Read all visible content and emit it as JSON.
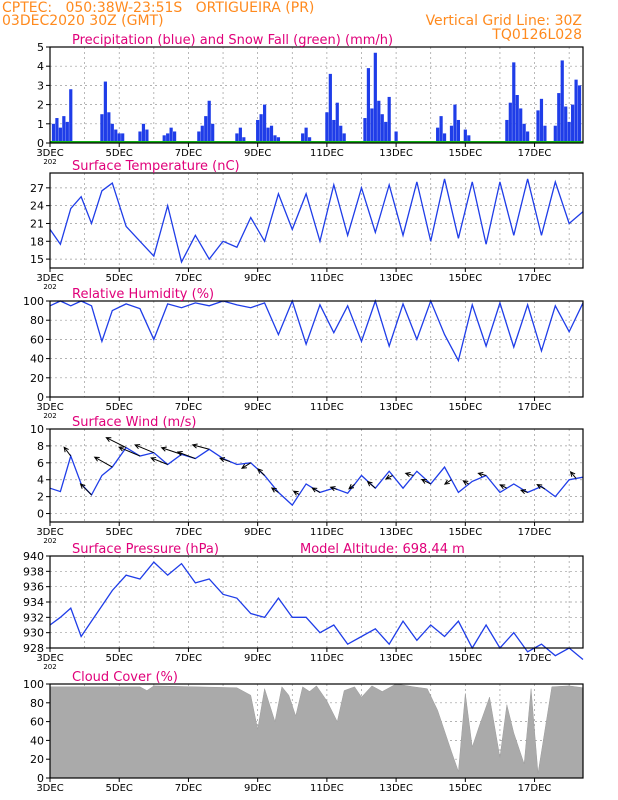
{
  "header": {
    "line1": "CPTEC:   050:38W-23:51S   ORTIGUEIRA (PR)",
    "line2": "03DEC2020 30Z (GMT)",
    "right1": "Vertical Grid Line: 30Z",
    "right2": "TQ0126L028"
  },
  "colors": {
    "header": "#ff8a1e",
    "title": "#e0007a",
    "precip": "#1f3de8",
    "snow": "#10b010",
    "line": "#1f3de8",
    "cloud": "#aaaaaa",
    "arrow": "#000000"
  },
  "x_axis": {
    "date_labels": [
      "3DEC",
      "5DEC",
      "7DEC",
      "9DEC",
      "11DEC",
      "13DEC",
      "15DEC",
      "17DEC"
    ],
    "first_label_suffix": "202",
    "start_day": 3,
    "end_day": 18.4
  },
  "chart_data": [
    {
      "id": "precip",
      "type": "bar",
      "title": "Precipitation (blue) and Snow Fall (green) (mm/h)",
      "ylim": [
        0,
        5
      ],
      "yticks": [
        "0",
        "1",
        "2",
        "3",
        "4",
        "5"
      ],
      "grid": true,
      "series": [
        {
          "name": "Precipitation",
          "x": [
            3.1,
            3.2,
            3.3,
            3.4,
            3.5,
            3.6,
            4.5,
            4.6,
            4.7,
            4.8,
            4.9,
            5.0,
            5.1,
            5.6,
            5.7,
            5.8,
            6.3,
            6.4,
            6.5,
            6.6,
            7.3,
            7.4,
            7.5,
            7.6,
            7.7,
            8.4,
            8.5,
            8.6,
            9.0,
            9.1,
            9.2,
            9.3,
            9.4,
            9.5,
            9.6,
            10.3,
            10.4,
            10.5,
            11.0,
            11.1,
            11.2,
            11.3,
            11.4,
            11.5,
            12.1,
            12.2,
            12.3,
            12.4,
            12.5,
            12.6,
            12.7,
            12.8,
            13.0,
            14.2,
            14.3,
            14.4,
            14.6,
            14.7,
            14.8,
            15.0,
            15.1,
            16.2,
            16.3,
            16.4,
            16.5,
            16.6,
            16.7,
            16.8,
            17.1,
            17.2,
            17.3,
            17.6,
            17.7,
            17.8,
            17.9,
            18.0,
            18.1,
            18.2,
            18.3
          ],
          "values": [
            1.0,
            1.3,
            0.8,
            1.4,
            1.1,
            2.8,
            1.5,
            3.2,
            1.6,
            1.0,
            0.7,
            0.5,
            0.5,
            0.6,
            1.0,
            0.7,
            0.4,
            0.5,
            0.8,
            0.6,
            0.6,
            0.9,
            1.4,
            2.2,
            1.0,
            0.5,
            0.8,
            0.3,
            1.2,
            1.5,
            2.0,
            0.8,
            0.9,
            0.4,
            0.3,
            0.5,
            0.8,
            0.3,
            1.6,
            3.6,
            1.2,
            2.1,
            0.9,
            0.5,
            1.3,
            3.9,
            1.8,
            4.7,
            2.2,
            1.5,
            1.1,
            2.4,
            0.6,
            0.8,
            1.4,
            0.5,
            0.9,
            2.0,
            1.2,
            0.7,
            0.4,
            1.2,
            2.1,
            4.2,
            2.5,
            1.8,
            1.0,
            0.6,
            1.7,
            2.3,
            0.9,
            0.9,
            2.6,
            4.3,
            1.9,
            1.1,
            2.0,
            3.3,
            3.0
          ]
        },
        {
          "name": "Snow Fall",
          "x": [
            3.0,
            18.4
          ],
          "values": [
            0.05,
            0.05
          ]
        }
      ]
    },
    {
      "id": "temp",
      "type": "line",
      "title": "Surface Temperature (nC)",
      "ylim": [
        13.5,
        29.5
      ],
      "yticks": [
        "15",
        "18",
        "21",
        "24",
        "27"
      ],
      "grid": true,
      "x": [
        3.0,
        3.3,
        3.6,
        3.9,
        4.2,
        4.5,
        4.8,
        5.2,
        5.6,
        6.0,
        6.4,
        6.8,
        7.2,
        7.6,
        8.0,
        8.4,
        8.8,
        9.2,
        9.6,
        10.0,
        10.4,
        10.8,
        11.2,
        11.6,
        12.0,
        12.4,
        12.8,
        13.2,
        13.6,
        14.0,
        14.4,
        14.8,
        15.2,
        15.6,
        16.0,
        16.4,
        16.8,
        17.2,
        17.6,
        18.0,
        18.4
      ],
      "values": [
        20.0,
        17.5,
        23.5,
        25.5,
        21.0,
        26.5,
        27.8,
        20.5,
        18.0,
        15.5,
        24.0,
        14.5,
        19.0,
        15.0,
        18.0,
        17.0,
        22.0,
        18.0,
        26.0,
        20.0,
        26.0,
        18.0,
        27.5,
        19.0,
        27.0,
        19.5,
        27.5,
        19.0,
        28.0,
        18.0,
        28.5,
        18.5,
        28.0,
        17.5,
        28.0,
        19.0,
        28.5,
        19.0,
        28.0,
        21.0,
        23.0
      ]
    },
    {
      "id": "rh",
      "type": "line",
      "title": "Relative Humidity (%)",
      "ylim": [
        0,
        100
      ],
      "yticks": [
        "0",
        "20",
        "40",
        "60",
        "80",
        "100"
      ],
      "grid": true,
      "x": [
        3.0,
        3.3,
        3.6,
        3.9,
        4.2,
        4.5,
        4.8,
        5.2,
        5.6,
        6.0,
        6.4,
        6.8,
        7.2,
        7.6,
        8.0,
        8.4,
        8.8,
        9.2,
        9.6,
        10.0,
        10.4,
        10.8,
        11.2,
        11.6,
        12.0,
        12.4,
        12.8,
        13.2,
        13.6,
        14.0,
        14.4,
        14.8,
        15.2,
        15.6,
        16.0,
        16.4,
        16.8,
        17.2,
        17.6,
        18.0,
        18.4
      ],
      "values": [
        95,
        100,
        95,
        100,
        95,
        58,
        90,
        97,
        92,
        60,
        97,
        93,
        98,
        95,
        100,
        96,
        93,
        98,
        65,
        100,
        55,
        96,
        67,
        95,
        58,
        100,
        53,
        97,
        60,
        100,
        65,
        38,
        96,
        53,
        98,
        52,
        96,
        48,
        95,
        68,
        98
      ]
    },
    {
      "id": "wind",
      "type": "line",
      "title": "Surface Wind (m/s)",
      "ylim": [
        -1,
        10
      ],
      "yticks": [
        "0",
        "2",
        "4",
        "6",
        "8",
        "10"
      ],
      "grid": true,
      "x": [
        3.0,
        3.3,
        3.6,
        3.9,
        4.2,
        4.5,
        4.8,
        5.2,
        5.6,
        6.0,
        6.4,
        6.8,
        7.2,
        7.6,
        8.0,
        8.4,
        8.8,
        9.2,
        9.6,
        10.0,
        10.4,
        10.8,
        11.2,
        11.6,
        12.0,
        12.4,
        12.8,
        13.2,
        13.6,
        14.0,
        14.4,
        14.8,
        15.2,
        15.6,
        16.0,
        16.4,
        16.8,
        17.2,
        17.6,
        18.0,
        18.4
      ],
      "values": [
        3.0,
        2.6,
        6.8,
        3.5,
        2.2,
        4.5,
        5.5,
        7.8,
        6.8,
        7.2,
        5.8,
        7.0,
        6.5,
        7.6,
        6.5,
        5.8,
        6.0,
        4.5,
        2.5,
        1.0,
        3.5,
        2.5,
        3.0,
        2.4,
        4.5,
        3.0,
        5.0,
        3.0,
        5.0,
        3.5,
        5.5,
        2.5,
        3.8,
        4.5,
        2.5,
        3.5,
        2.5,
        3.2,
        2.0,
        4.0,
        4.3
      ],
      "arrows_x": [
        3.6,
        4.2,
        4.8,
        5.2,
        5.6,
        6.0,
        6.4,
        6.8,
        7.2,
        7.6,
        8.2,
        8.8,
        9.2,
        9.6,
        10.2,
        10.8,
        11.3,
        11.8,
        12.4,
        12.9,
        13.5,
        14.0,
        14.6,
        15.1,
        15.6,
        16.2,
        16.8,
        17.3,
        18.2
      ],
      "arrows_u": [
        -0.6,
        -1.0,
        -1.6,
        -1.8,
        -1.9,
        -1.7,
        -1.5,
        -1.8,
        -1.6,
        -1.5,
        -0.9,
        -0.8,
        -0.6,
        -0.6,
        -0.5,
        -0.7,
        -0.6,
        -0.5,
        -0.7,
        -0.6,
        -0.7,
        -0.8,
        -0.6,
        -0.5,
        -0.7,
        -0.6,
        -0.6,
        -0.7,
        -0.5
      ],
      "arrows_v": [
        0.8,
        1.0,
        0.9,
        0.9,
        0.8,
        0.7,
        0.6,
        0.6,
        0.6,
        0.4,
        0.3,
        -0.5,
        0.6,
        0.4,
        0.3,
        0.4,
        0.2,
        -0.4,
        0.6,
        -0.3,
        0.2,
        0.4,
        -0.4,
        0.3,
        0.2,
        0.3,
        0.2,
        0.4,
        0.6
      ]
    },
    {
      "id": "pres",
      "type": "line",
      "title": "Surface Pressure (hPa)",
      "annotation": "Model Altitude: 698.44 m",
      "ylim": [
        928,
        940
      ],
      "yticks": [
        "928",
        "930",
        "932",
        "934",
        "936",
        "938",
        "940"
      ],
      "grid": true,
      "x": [
        3.0,
        3.3,
        3.6,
        3.9,
        4.2,
        4.5,
        4.8,
        5.2,
        5.6,
        6.0,
        6.4,
        6.8,
        7.2,
        7.6,
        8.0,
        8.4,
        8.8,
        9.2,
        9.6,
        10.0,
        10.4,
        10.8,
        11.2,
        11.6,
        12.0,
        12.4,
        12.8,
        13.2,
        13.6,
        14.0,
        14.4,
        14.8,
        15.2,
        15.6,
        16.0,
        16.4,
        16.8,
        17.2,
        17.6,
        18.0,
        18.4
      ],
      "values": [
        931.0,
        932.0,
        933.2,
        929.5,
        931.5,
        933.5,
        935.5,
        937.5,
        937.0,
        939.2,
        937.5,
        939.0,
        936.5,
        937.0,
        935.0,
        934.5,
        932.5,
        932.0,
        934.5,
        932.0,
        932.0,
        930.0,
        931.0,
        928.5,
        929.5,
        930.5,
        928.5,
        931.5,
        929.0,
        931.0,
        929.5,
        931.5,
        928.0,
        931.0,
        928.0,
        930.0,
        927.5,
        928.5,
        927.0,
        928.0,
        926.5
      ]
    },
    {
      "id": "cloud",
      "type": "area",
      "title": "Cloud Cover (%)",
      "ylim": [
        0,
        100
      ],
      "yticks": [
        "0",
        "20",
        "40",
        "60",
        "80",
        "100"
      ],
      "grid": true,
      "x": [
        3.0,
        5.6,
        5.8,
        6.0,
        8.4,
        8.8,
        9.0,
        9.2,
        9.5,
        9.7,
        9.9,
        10.1,
        10.3,
        10.5,
        10.7,
        11.0,
        11.3,
        11.5,
        11.8,
        12.0,
        12.3,
        12.6,
        13.0,
        13.5,
        13.9,
        14.2,
        14.6,
        14.8,
        15.0,
        15.2,
        15.4,
        15.7,
        16.0,
        16.2,
        16.4,
        16.7,
        16.9,
        17.1,
        17.5,
        18.0,
        18.4
      ],
      "values": [
        97,
        97,
        93,
        98,
        96,
        88,
        52,
        95,
        60,
        97,
        88,
        66,
        97,
        92,
        98,
        82,
        60,
        93,
        97,
        86,
        98,
        92,
        100,
        97,
        95,
        72,
        28,
        7,
        90,
        33,
        55,
        86,
        22,
        78,
        48,
        15,
        95,
        5,
        97,
        98,
        96
      ]
    }
  ]
}
